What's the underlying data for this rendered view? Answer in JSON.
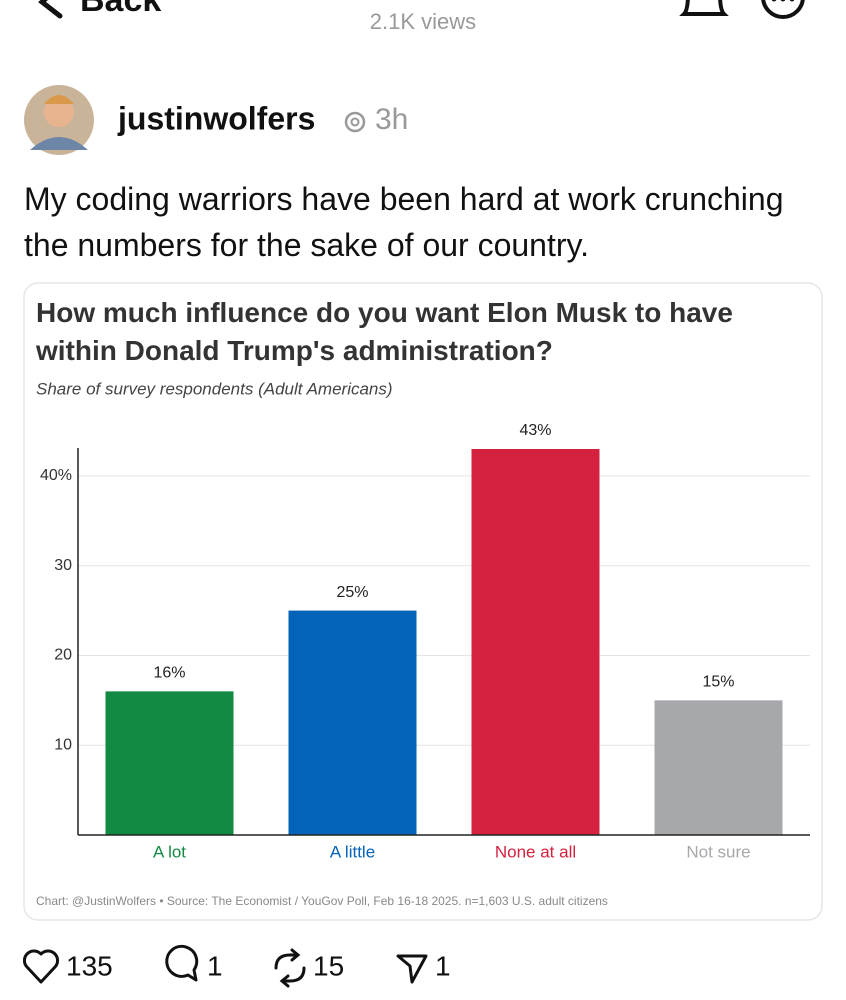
{
  "header": {
    "back": "Back",
    "views": "2.1K views"
  },
  "post": {
    "username": "justinwolfers",
    "time": "3h",
    "text": "My coding warriors have been hard at work crunching the numbers for the sake of our country."
  },
  "chart_data": {
    "type": "bar",
    "title": "How much influence do you want Elon Musk to have within Donald Trump's administration?",
    "subtitle": "Share of survey respondents (Adult Americans)",
    "categories": [
      "A lot",
      "A little",
      "None at all",
      "Not sure"
    ],
    "values": [
      16,
      25,
      43,
      15
    ],
    "value_labels": [
      "16%",
      "25%",
      "43%",
      "15%"
    ],
    "colors": [
      "#138a43",
      "#0263b8",
      "#d3213f",
      "#a6a8ab"
    ],
    "ylim": [
      0,
      43
    ],
    "yticks": [
      10,
      20,
      30,
      {
        "value": 40,
        "label": "40%"
      }
    ],
    "grid": true,
    "source": "Chart: @JustinWolfers • Source: The Economist / YouGov Poll, Feb 16-18 2025. n=1,603 U.S. adult citizens"
  },
  "actions": {
    "likes": "135",
    "replies": "1",
    "reposts": "15",
    "shares": "1"
  }
}
